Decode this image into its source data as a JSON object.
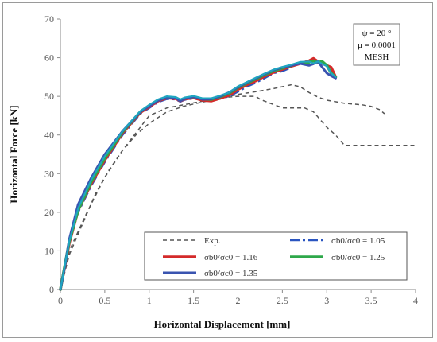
{
  "chart_data": {
    "type": "line",
    "title": "",
    "xlabel": "Horizontal Displacement [mm]",
    "ylabel": "Horizontal Force [kN]",
    "xlim": [
      0,
      4
    ],
    "ylim": [
      0,
      70
    ],
    "xticks": [
      "0",
      "0.5",
      "1",
      "1.5",
      "2",
      "2.5",
      "3",
      "3.5",
      "4"
    ],
    "yticks": [
      "0",
      "10",
      "20",
      "30",
      "40",
      "50",
      "60",
      "70"
    ],
    "grid": false,
    "annotation": [
      "ψ = 20 °",
      "μ = 0.0001",
      "MESH"
    ],
    "legend_position": "bottom-right",
    "series": [
      {
        "name": "Exp.",
        "color": "#555555",
        "style": "dashed",
        "width": 1.5,
        "x": [
          0,
          0.1,
          0.25,
          0.4,
          0.55,
          0.7,
          0.85,
          1.0,
          1.2,
          1.4,
          1.6,
          1.8,
          2.0,
          2.2,
          2.4,
          2.6,
          2.7,
          2.8,
          2.9,
          3.0,
          3.2,
          3.4,
          3.5,
          3.6,
          3.65
        ],
        "y": [
          0,
          9,
          17,
          25,
          31,
          36,
          40,
          43,
          46,
          47.5,
          48.5,
          49.5,
          50.5,
          51.2,
          52,
          53,
          52.5,
          51,
          49.8,
          49,
          48.2,
          47.8,
          47.4,
          46.5,
          45.5
        ]
      },
      {
        "name": "",
        "color": "#555555",
        "style": "dashed",
        "width": 1.5,
        "x": [
          0,
          0.1,
          0.3,
          0.5,
          0.7,
          0.9,
          1.0,
          1.2,
          1.5,
          1.8,
          2.0,
          2.2,
          2.25,
          2.5,
          2.75,
          2.85,
          3.0,
          3.1,
          3.2,
          3.4,
          3.6,
          3.8,
          4.0
        ],
        "y": [
          0,
          10,
          20,
          29,
          36,
          42,
          45,
          47,
          48.3,
          49.6,
          50,
          50,
          49.2,
          47,
          47,
          46,
          42,
          40,
          37.3,
          37.3,
          37.3,
          37.3,
          37.3
        ]
      },
      {
        "name": "σb0/σc0 = 1.05",
        "color": "#2a55c0",
        "style": "dashdot",
        "width": 2.5,
        "x": [
          0,
          0.1,
          0.2,
          0.35,
          0.5,
          0.7,
          0.9,
          1.0,
          1.1,
          1.2,
          1.3,
          1.35,
          1.4,
          1.5,
          1.6,
          1.7,
          1.8,
          1.9,
          2.0,
          2.1,
          2.2,
          2.3,
          2.4,
          2.5,
          2.6
        ],
        "y": [
          0,
          12,
          20,
          27,
          33,
          40,
          45.5,
          47,
          48.5,
          49.3,
          49.2,
          48.6,
          49.1,
          49.5,
          49,
          48.8,
          49.4,
          50,
          51.2,
          52.5,
          53.5,
          54.7,
          56,
          56.5,
          57.5
        ]
      },
      {
        "name": "σb0/σc0 = 1.16",
        "color": "#d42a2a",
        "style": "solid",
        "width": 3.5,
        "x": [
          0,
          0.1,
          0.2,
          0.35,
          0.5,
          0.7,
          0.9,
          1.0,
          1.1,
          1.2,
          1.3,
          1.35,
          1.4,
          1.5,
          1.6,
          1.7,
          1.8,
          1.9,
          2.0,
          2.1,
          2.2,
          2.3,
          2.4,
          2.5,
          2.6,
          2.7,
          2.8,
          2.85,
          2.9,
          2.95,
          3.0,
          3.05,
          3.1
        ],
        "y": [
          0,
          12,
          20.5,
          27.5,
          33.5,
          40.5,
          45.8,
          47.3,
          48.8,
          49.6,
          49.4,
          48.8,
          49.3,
          49.6,
          49,
          48.8,
          49.5,
          50.3,
          51.8,
          53,
          54,
          55.2,
          56.2,
          57,
          57.8,
          58.5,
          59.2,
          59.8,
          59,
          58.5,
          58,
          57.5,
          55
        ]
      },
      {
        "name": "σb0/σc0 = 1.25",
        "color": "#2ea84a",
        "style": "solid",
        "width": 3.5,
        "x": [
          0,
          0.1,
          0.2,
          0.35,
          0.5,
          0.7,
          0.9,
          1.0,
          1.1,
          1.2,
          1.3,
          1.35,
          1.4,
          1.5,
          1.6,
          1.7,
          1.8,
          1.9,
          2.0,
          2.1,
          2.2,
          2.3,
          2.4,
          2.5,
          2.6,
          2.7,
          2.75,
          2.8,
          2.85,
          2.9,
          2.95,
          3.0,
          3.05,
          3.1
        ],
        "y": [
          0,
          12.5,
          20.5,
          28,
          34,
          40.8,
          46,
          47.6,
          49,
          49.8,
          49.6,
          49,
          49.5,
          49.9,
          49.3,
          49.2,
          49.9,
          50.8,
          52.3,
          53.4,
          54.5,
          55.6,
          56.6,
          57.3,
          58,
          58.7,
          58.3,
          58.8,
          59.2,
          58.8,
          59,
          58,
          56,
          55
        ]
      },
      {
        "name": "σb0/σc0 = 1.35",
        "color": "#3a54b0",
        "style": "solid",
        "width": 3,
        "x": [
          0,
          0.05,
          0.1,
          0.2,
          0.35,
          0.5,
          0.7,
          0.9,
          1.0,
          1.1,
          1.2,
          1.3,
          1.35,
          1.4,
          1.5,
          1.6,
          1.7,
          1.8,
          1.9,
          2.0,
          2.1,
          2.2,
          2.3,
          2.4,
          2.5,
          2.6,
          2.7,
          2.8,
          2.85,
          2.9,
          2.95,
          3.0,
          3.05,
          3.1
        ],
        "y": [
          0,
          6,
          13,
          22,
          29,
          35,
          41,
          46,
          47.5,
          48.9,
          49.8,
          49.5,
          48.8,
          49.4,
          49.9,
          49.2,
          49.3,
          50,
          51,
          52.4,
          53.6,
          54.7,
          55.8,
          56.8,
          57.5,
          58,
          58.5,
          58,
          58.4,
          59,
          57.5,
          56,
          55.3,
          54.7
        ]
      },
      {
        "name": "",
        "color": "#1fa6c0",
        "style": "solid",
        "width": 2.2,
        "x": [
          0,
          0.1,
          0.2,
          0.35,
          0.5,
          0.7,
          0.9,
          1.0,
          1.1,
          1.2,
          1.3,
          1.35,
          1.4,
          1.5,
          1.6,
          1.7,
          1.8,
          1.9,
          2.0,
          2.1,
          2.2,
          2.3,
          2.4,
          2.5,
          2.6,
          2.7,
          2.8,
          2.85,
          2.9,
          3.0,
          3.05,
          3.1
        ],
        "y": [
          0,
          12.5,
          21,
          28.5,
          34.5,
          41,
          46.2,
          47.8,
          49.2,
          50,
          49.8,
          49.2,
          49.7,
          50.1,
          49.5,
          49.5,
          50.2,
          51,
          52.6,
          53.7,
          54.8,
          55.9,
          56.9,
          57.6,
          58.2,
          58.9,
          59,
          58.5,
          59,
          57.8,
          56,
          55
        ]
      }
    ]
  }
}
